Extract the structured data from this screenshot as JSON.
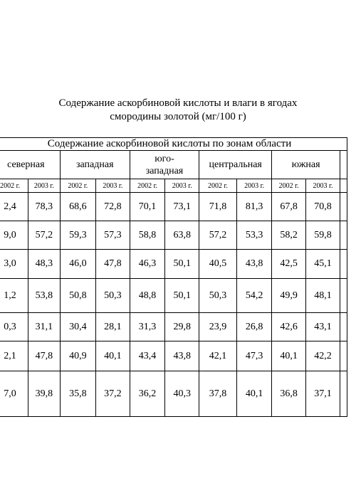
{
  "title": {
    "line1": "Содержание аскорбиновой кислоты и влаги в ягодах",
    "line2": "смородины золотой (мг/100 г)"
  },
  "table": {
    "group_header": "Содержание аскорбиновой кислоты по зонам области",
    "zones": [
      {
        "label_lines": [
          "северная"
        ],
        "years": [
          "2002 г.",
          "2003 г."
        ]
      },
      {
        "label_lines": [
          "западная"
        ],
        "years": [
          "2002 г.",
          "2003 г."
        ]
      },
      {
        "label_lines": [
          "юго-",
          "западная"
        ],
        "years": [
          "2002 г.",
          "2003 г."
        ]
      },
      {
        "label_lines": [
          "центральная"
        ],
        "years": [
          "2002 г.",
          "2003 г."
        ]
      },
      {
        "label_lines": [
          "южная"
        ],
        "years": [
          "2002 г.",
          "2003 г."
        ]
      }
    ],
    "rows": [
      [
        "2,4",
        "78,3",
        "68,6",
        "72,8",
        "70,1",
        "73,1",
        "71,8",
        "81,3",
        "67,8",
        "70,8"
      ],
      [
        "9,0",
        "57,2",
        "59,3",
        "57,3",
        "58,8",
        "63,8",
        "57,2",
        "53,3",
        "58,2",
        "59,8"
      ],
      [
        "3,0",
        "48,3",
        "46,0",
        "47,8",
        "46,3",
        "50,1",
        "40,5",
        "43,8",
        "42,5",
        "45,1"
      ],
      [
        "1,2",
        "53,8",
        "50,8",
        "50,3",
        "48,8",
        "50,1",
        "50,3",
        "54,2",
        "49,9",
        "48,1"
      ],
      [
        "0,3",
        "31,1",
        "30,4",
        "28,1",
        "31,3",
        "29,8",
        "23,9",
        "26,8",
        "42,6",
        "43,1"
      ],
      [
        "2,1",
        "47,8",
        "40,9",
        "40,1",
        "43,4",
        "43,8",
        "42,1",
        "47,3",
        "40,1",
        "42,2"
      ],
      [
        "7,0",
        "39,8",
        "35,8",
        "37,2",
        "36,2",
        "40,3",
        "37,8",
        "40,1",
        "36,8",
        "37,1"
      ]
    ]
  }
}
